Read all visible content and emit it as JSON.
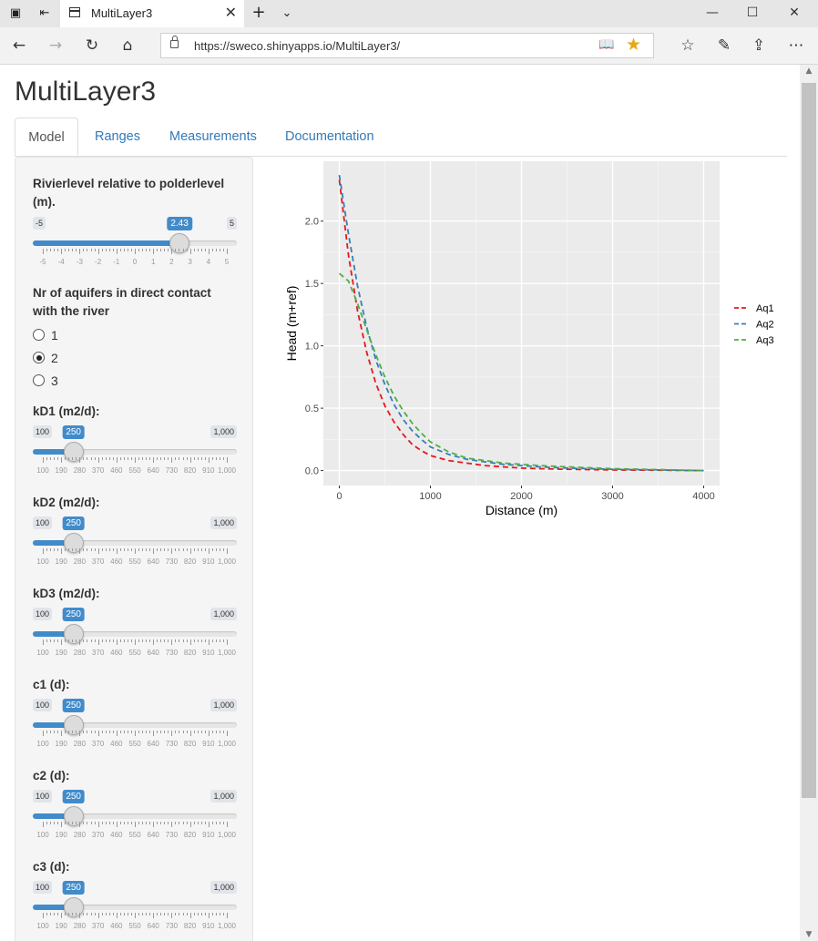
{
  "browser": {
    "tab_title": "MultiLayer3",
    "url": "https://sweco.shinyapps.io/MultiLayer3/"
  },
  "app": {
    "title": "MultiLayer3",
    "tabs": [
      "Model",
      "Ranges",
      "Measurements",
      "Documentation"
    ],
    "active_tab": "Model"
  },
  "sidebar": {
    "river": {
      "label": "Rivierlevel relative to polderlevel (m).",
      "min": "-5",
      "max": "5",
      "value": 2.43,
      "value_label": "2.43",
      "range": [
        -5,
        5
      ],
      "ticks": [
        "-5",
        "-4",
        "-3",
        "-2",
        "-1",
        "0",
        "1",
        "2",
        "3",
        "4",
        "5"
      ]
    },
    "aquifers": {
      "label": "Nr of aquifers in direct contact with the river",
      "options": [
        "1",
        "2",
        "3"
      ],
      "selected": "2"
    },
    "sliders": [
      {
        "label": "kD1 (m2/d):",
        "min": "100",
        "max": "1,000",
        "value": 250,
        "value_label": "250"
      },
      {
        "label": "kD2 (m2/d):",
        "min": "100",
        "max": "1,000",
        "value": 250,
        "value_label": "250"
      },
      {
        "label": "kD3 (m2/d):",
        "min": "100",
        "max": "1,000",
        "value": 250,
        "value_label": "250"
      },
      {
        "label": "c1 (d):",
        "min": "100",
        "max": "1,000",
        "value": 250,
        "value_label": "250"
      },
      {
        "label": "c2 (d):",
        "min": "100",
        "max": "1,000",
        "value": 250,
        "value_label": "250"
      },
      {
        "label": "c3 (d):",
        "min": "100",
        "max": "1,000",
        "value": 250,
        "value_label": "250"
      }
    ],
    "k_ticks": [
      "100",
      "190",
      "280",
      "370",
      "460",
      "550",
      "640",
      "730",
      "820",
      "910",
      "1,000"
    ],
    "k_range": [
      100,
      1000
    ]
  },
  "chart_data": {
    "type": "line",
    "xlabel": "Distance (m)",
    "ylabel": "Head (m+ref)",
    "xlim": [
      -175,
      4175
    ],
    "ylim": [
      -0.12,
      2.48
    ],
    "xticks": [
      0,
      1000,
      2000,
      3000,
      4000
    ],
    "xtick_labels": [
      "0",
      "1000",
      "2000",
      "3000",
      "4000"
    ],
    "yticks": [
      0,
      0.5,
      1.0,
      1.5,
      2.0
    ],
    "ytick_labels": [
      "0.0",
      "0.5",
      "1.0",
      "1.5",
      "2.0"
    ],
    "grid": true,
    "legend_position": "right",
    "x": [
      0,
      100,
      200,
      300,
      400,
      500,
      600,
      700,
      800,
      900,
      1000,
      1200,
      1400,
      1600,
      1800,
      2000,
      2200,
      2500,
      3000,
      3500,
      4000
    ],
    "series": [
      {
        "name": "Aq1",
        "color": "#e41a1c",
        "values": [
          2.33,
          1.73,
          1.28,
          0.95,
          0.7,
          0.52,
          0.39,
          0.29,
          0.21,
          0.16,
          0.12,
          0.08,
          0.06,
          0.04,
          0.03,
          0.02,
          0.015,
          0.01,
          0.005,
          0.003,
          0.0
        ]
      },
      {
        "name": "Aq2",
        "color": "#377eb8",
        "values": [
          2.37,
          1.9,
          1.48,
          1.15,
          0.89,
          0.69,
          0.53,
          0.41,
          0.32,
          0.25,
          0.19,
          0.13,
          0.09,
          0.07,
          0.05,
          0.04,
          0.03,
          0.02,
          0.01,
          0.005,
          0.0
        ]
      },
      {
        "name": "Aq3",
        "color": "#4daf4a",
        "values": [
          1.58,
          1.52,
          1.34,
          1.13,
          0.93,
          0.75,
          0.6,
          0.48,
          0.38,
          0.3,
          0.23,
          0.15,
          0.1,
          0.08,
          0.06,
          0.05,
          0.04,
          0.03,
          0.015,
          0.008,
          0.0
        ]
      }
    ]
  }
}
